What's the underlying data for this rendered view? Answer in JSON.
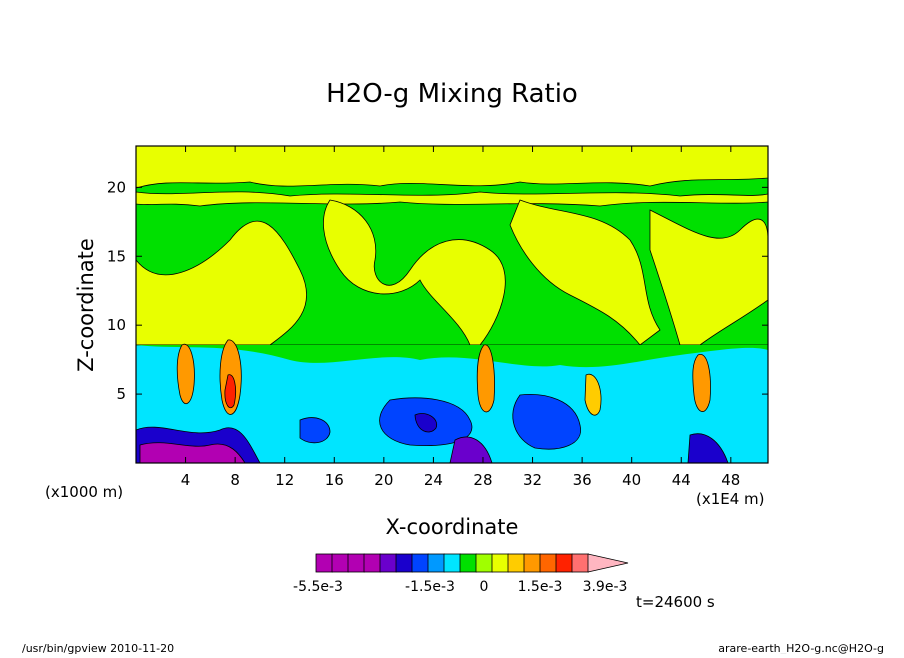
{
  "chart_data": {
    "type": "heatmap",
    "title": "H2O-g Mixing Ratio",
    "xlabel": "X-coordinate",
    "ylabel": "Z-coordinate",
    "x_unit": "(x1E4 m)",
    "y_unit": "(x1000 m)",
    "xlim": [
      0,
      51
    ],
    "ylim": [
      0,
      23
    ],
    "x_ticks": [
      "4",
      "8",
      "12",
      "16",
      "20",
      "24",
      "28",
      "32",
      "36",
      "40",
      "44",
      "48"
    ],
    "y_ticks": [
      "5",
      "10",
      "15",
      "20"
    ],
    "colorbar": {
      "colors": [
        "#b200b2",
        "#b200b2",
        "#b200b2",
        "#b200b2",
        "#6a00cc",
        "#1a00cc",
        "#0044ff",
        "#0099ff",
        "#00e5ff",
        "#00e000",
        "#a0ff00",
        "#e8ff00",
        "#ffcc00",
        "#ff9900",
        "#ff6600",
        "#ff2200",
        "#ff7070",
        "#ffb6c1"
      ],
      "tick_labels": [
        "-5.5e-3",
        "-1.5e-3",
        "0",
        "1.5e-3",
        "3.9e-3"
      ]
    },
    "time_label": "t=24600 s",
    "footer_left": "/usr/bin/gpview  2010-11-20",
    "footer_right": "arare-earth_H2O-g.nc@H2O-g"
  }
}
